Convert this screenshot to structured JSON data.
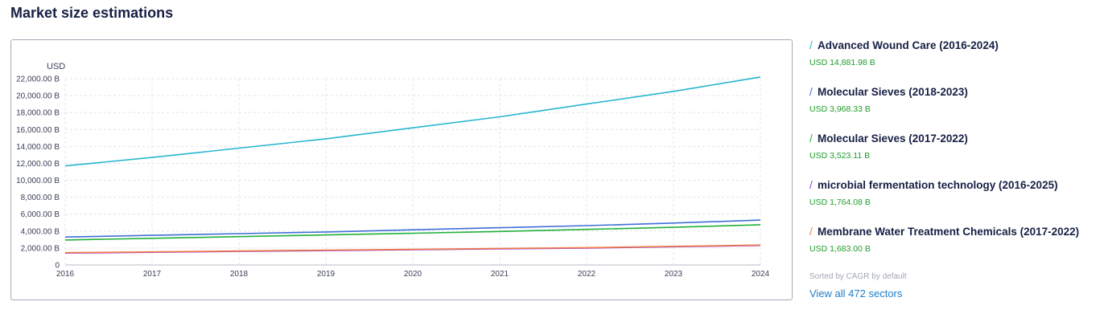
{
  "page": {
    "title": "Market size estimations"
  },
  "legend": {
    "items": [
      {
        "title": "Advanced Wound Care (2016-2024)",
        "value": "USD 14,881.98 B",
        "color": "#26b7cf"
      },
      {
        "title": "Molecular Sieves (2018-2023)",
        "value": "USD 3,968.33 B",
        "color": "#3e6fd6"
      },
      {
        "title": "Molecular Sieves (2017-2022)",
        "value": "USD 3,523.11 B",
        "color": "#22b03a"
      },
      {
        "title": "microbial fermentation technology (2016-2025)",
        "value": "USD 1,764.08 B",
        "color": "#9b3fd4"
      },
      {
        "title": "Membrane Water Treatment Chemicals (2017-2022)",
        "value": "USD 1,683.00 B",
        "color": "#ef7d4a"
      }
    ],
    "sort_note": "Sorted by CAGR by default",
    "view_all": "View all 472 sectors"
  },
  "chart_data": {
    "type": "line",
    "unit_label": "USD",
    "x": [
      2016,
      2017,
      2018,
      2019,
      2020,
      2021,
      2022,
      2023,
      2024
    ],
    "x_tick_labels": [
      "2016",
      "2017",
      "2018",
      "2019",
      "2020",
      "2021",
      "2022",
      "2023",
      "2024"
    ],
    "ylim": [
      0,
      22000
    ],
    "y_ticks": [
      0,
      2000,
      4000,
      6000,
      8000,
      10000,
      12000,
      14000,
      16000,
      18000,
      20000,
      22000
    ],
    "y_tick_labels": [
      "0",
      "2,000.00 B",
      "4,000.00 B",
      "6,000.00 B",
      "8,000.00 B",
      "10,000.00 B",
      "12,000.00 B",
      "14,000.00 B",
      "16,000.00 B",
      "18,000.00 B",
      "20,000.00 B",
      "22,000.00 B"
    ],
    "grid": true,
    "series": [
      {
        "name": "Advanced Wound Care (2016-2024)",
        "color": "#26b7cf",
        "values": [
          11700,
          12700,
          13800,
          14900,
          16200,
          17500,
          19000,
          20500,
          22200
        ]
      },
      {
        "name": "Molecular Sieves (2018-2023)",
        "color": "#3e6fd6",
        "values": [
          3300,
          3500,
          3700,
          3900,
          4150,
          4400,
          4650,
          4950,
          5300
        ]
      },
      {
        "name": "Molecular Sieves (2017-2022)",
        "color": "#22b03a",
        "values": [
          2950,
          3150,
          3350,
          3550,
          3750,
          3950,
          4200,
          4450,
          4750
        ]
      },
      {
        "name": "microbial fermentation technology (2016-2025)",
        "color": "#9b3fd4",
        "values": [
          1400,
          1500,
          1600,
          1700,
          1800,
          1900,
          2000,
          2150,
          2300
        ]
      },
      {
        "name": "Membrane Water Treatment Chemicals (2017-2022)",
        "color": "#ef7d4a",
        "values": [
          1450,
          1550,
          1650,
          1750,
          1850,
          1950,
          2050,
          2200,
          2350
        ]
      }
    ]
  }
}
